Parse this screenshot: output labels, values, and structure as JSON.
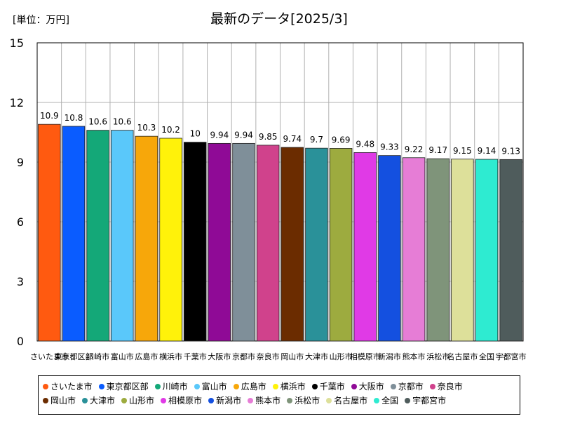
{
  "chart_data": {
    "type": "bar",
    "title": "最新のデータ[2025/3]",
    "unit_label": "[単位：万円]",
    "xlabel": "",
    "ylabel": "",
    "ylim": [
      0,
      15
    ],
    "y_ticks": [
      0,
      3,
      6,
      9,
      12,
      15
    ],
    "grid": true,
    "legend_position": "bottom",
    "categories": [
      "さいたま市",
      "東京都区部",
      "川崎市",
      "富山市",
      "広島市",
      "横浜市",
      "千葉市",
      "大阪市",
      "京都市",
      "奈良市",
      "岡山市",
      "大津市",
      "山形市",
      "相模原市",
      "新潟市",
      "熊本市",
      "浜松市",
      "名古屋市",
      "全国",
      "宇都宮市"
    ],
    "values": [
      10.9,
      10.8,
      10.6,
      10.6,
      10.3,
      10.2,
      10,
      9.94,
      9.94,
      9.85,
      9.74,
      9.7,
      9.69,
      9.48,
      9.33,
      9.22,
      9.17,
      9.15,
      9.14,
      9.13
    ],
    "value_labels": [
      "10.9",
      "10.8",
      "10.6",
      "10.6",
      "10.3",
      "10.2",
      "10",
      "9.94",
      "9.94",
      "9.85",
      "9.74",
      "9.7",
      "9.69",
      "9.48",
      "9.33",
      "9.22",
      "9.17",
      "9.15",
      "9.14",
      "9.13"
    ],
    "colors": [
      "#ff5a10",
      "#0a5cff",
      "#14a878",
      "#5ac8fa",
      "#f7a70a",
      "#fff20a",
      "#000000",
      "#8f0a96",
      "#7f8f99",
      "#d0428c",
      "#6b2c00",
      "#2a9199",
      "#9dab3f",
      "#e03ae6",
      "#1450e0",
      "#e67dd6",
      "#7f947a",
      "#dde09a",
      "#2eebd1",
      "#4f5c5c"
    ]
  },
  "legend": {
    "rows": [
      [
        0,
        1,
        2,
        3,
        4,
        5,
        6,
        7,
        8,
        9
      ],
      [
        10,
        11,
        12,
        13,
        14,
        15,
        16,
        17,
        18,
        19
      ]
    ]
  }
}
